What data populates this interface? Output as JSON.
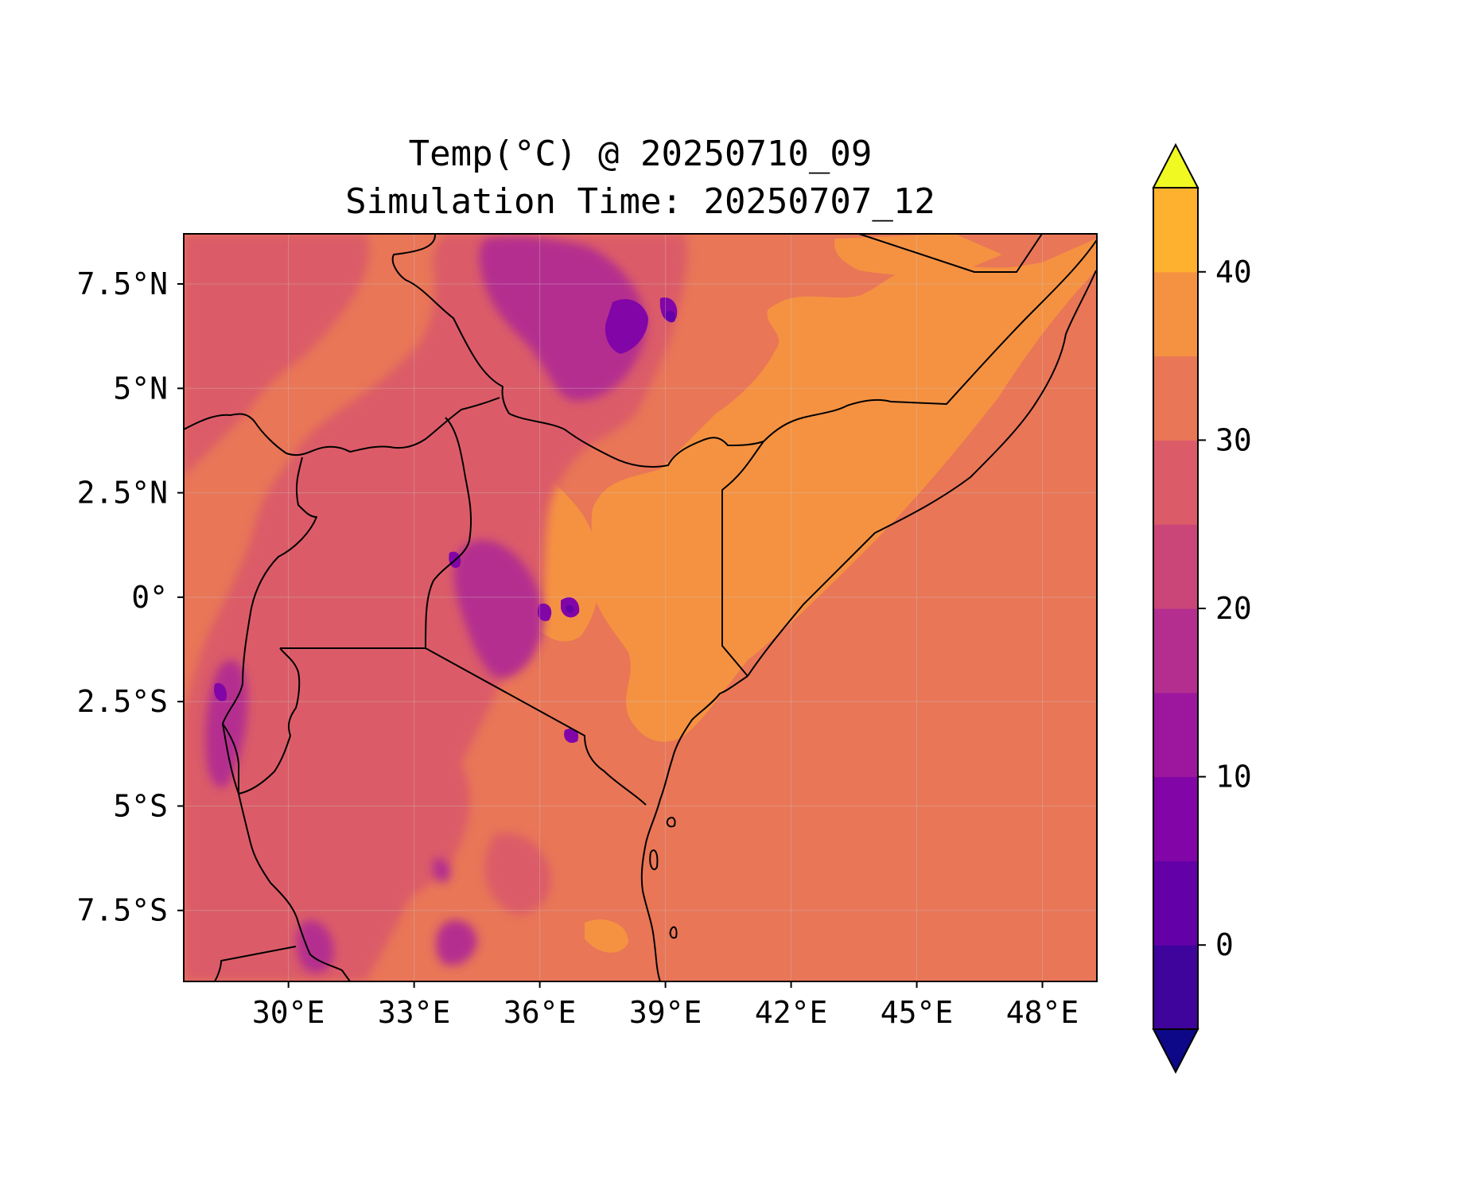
{
  "title": {
    "line1": "Temp(°C) @ 20250710_09",
    "line2": "Simulation Time: 20250707_12"
  },
  "map": {
    "lon_range": [
      27.5,
      49.3
    ],
    "lat_range": [
      -9.2,
      8.7
    ],
    "lon_ticks": [
      {
        "value": 30,
        "label": "30°E"
      },
      {
        "value": 33,
        "label": "33°E"
      },
      {
        "value": 36,
        "label": "36°E"
      },
      {
        "value": 39,
        "label": "39°E"
      },
      {
        "value": 42,
        "label": "42°E"
      },
      {
        "value": 45,
        "label": "45°E"
      },
      {
        "value": 48,
        "label": "48°E"
      }
    ],
    "lat_ticks": [
      {
        "value": 7.5,
        "label": "7.5°N"
      },
      {
        "value": 5,
        "label": "5°N"
      },
      {
        "value": 2.5,
        "label": "2.5°N"
      },
      {
        "value": 0,
        "label": "0°"
      },
      {
        "value": -2.5,
        "label": "2.5°S"
      },
      {
        "value": -5,
        "label": "5°S"
      },
      {
        "value": -7.5,
        "label": "7.5°S"
      }
    ],
    "colormap": "plasma",
    "background_level_color": "#e97657",
    "gridlines": true
  },
  "colorbar": {
    "extend": "both",
    "range": [
      -5,
      45
    ],
    "level_step": 5,
    "colors": [
      "#1a0c87",
      "#3f049c",
      "#6300a7",
      "#8105a7",
      "#9c179e",
      "#b42e8f",
      "#ca4678",
      "#db5c68",
      "#e97657",
      "#f59242",
      "#fdb12f",
      "#f8d625",
      "#f0f921"
    ],
    "under_color": "#0d0887",
    "over_color": "#f0f921",
    "ticks": [
      {
        "value": 0,
        "label": "0"
      },
      {
        "value": 10,
        "label": "10"
      },
      {
        "value": 20,
        "label": "20"
      },
      {
        "value": 30,
        "label": "30"
      },
      {
        "value": 40,
        "label": "40"
      }
    ]
  }
}
